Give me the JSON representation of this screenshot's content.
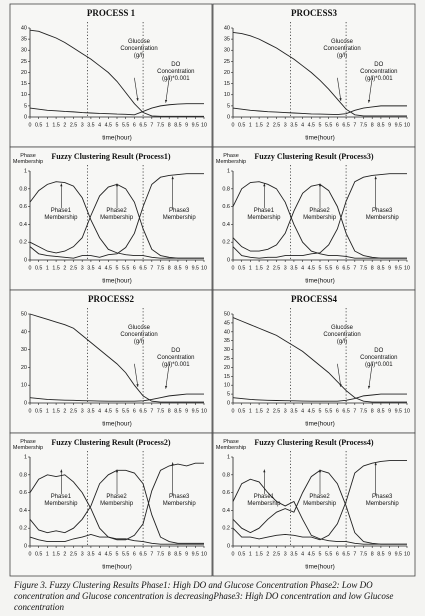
{
  "chart_data": [
    {
      "type": "line",
      "title": "PROCESS 1",
      "xlabel": "time(hour)",
      "x": [
        0,
        0.5,
        1,
        1.5,
        2,
        2.5,
        3,
        3.5,
        4,
        4.5,
        5,
        5.5,
        6,
        6.5,
        7,
        7.5,
        8,
        8.5,
        9,
        9.5,
        10
      ],
      "xlim": [
        0,
        10
      ],
      "xticks": [
        0,
        0.5,
        1,
        1.5,
        2,
        2.5,
        3,
        3.5,
        4,
        4.5,
        5,
        5.5,
        6,
        6.5,
        7,
        7.5,
        8,
        8.5,
        9,
        9.5,
        10
      ],
      "ylim": [
        0,
        40
      ],
      "yticks": [
        0,
        5,
        10,
        15,
        20,
        25,
        30,
        35,
        40
      ],
      "phase_boundaries": [
        3.3,
        6.5
      ],
      "series": [
        {
          "name": "Glucose Concentration (g/l)",
          "color": "#222",
          "values": [
            39,
            38.5,
            37,
            35.5,
            33.5,
            31,
            28.5,
            26,
            23,
            20,
            16,
            11,
            6,
            2,
            0.5,
            0.3,
            0.3,
            0.3,
            0.3,
            0.3,
            0.3
          ]
        },
        {
          "name": "DO Concentration (g/l)*0.001",
          "color": "#222",
          "values": [
            4,
            3.5,
            3,
            2.8,
            2.5,
            2.3,
            2,
            1.8,
            1.6,
            1.5,
            1.3,
            1.2,
            1,
            2.5,
            4,
            5,
            5.5,
            5.8,
            6,
            6,
            6
          ]
        }
      ]
    },
    {
      "type": "line",
      "title": "PROCESS3",
      "xlabel": "time(hour)",
      "x": [
        0,
        0.5,
        1,
        1.5,
        2,
        2.5,
        3,
        3.5,
        4,
        4.5,
        5,
        5.5,
        6,
        6.5,
        7,
        7.5,
        8,
        8.5,
        9,
        9.5,
        10
      ],
      "xlim": [
        0,
        10
      ],
      "xticks": [
        0,
        0.5,
        1,
        1.5,
        2,
        2.5,
        3,
        3.5,
        4,
        4.5,
        5,
        5.5,
        6,
        6.5,
        7,
        7.5,
        8,
        8.5,
        9,
        9.5,
        10
      ],
      "ylim": [
        0,
        40
      ],
      "yticks": [
        0,
        5,
        10,
        15,
        20,
        25,
        30,
        35,
        40
      ],
      "phase_boundaries": [
        3.3,
        6.5
      ],
      "series": [
        {
          "name": "Glucose Concentration (g/l)",
          "color": "#222",
          "values": [
            38,
            37.5,
            36.5,
            35,
            33,
            31,
            28.5,
            26,
            23,
            20,
            16.5,
            12.5,
            8,
            3.5,
            1,
            0.5,
            0.5,
            0.5,
            0.5,
            0.5,
            0.5
          ]
        },
        {
          "name": "DO Concentration (g/l)*0.001",
          "color": "#222",
          "values": [
            4,
            3.5,
            3,
            2.7,
            2.4,
            2.2,
            2,
            1.8,
            1.6,
            1.4,
            1.3,
            1.2,
            1.1,
            1.5,
            3,
            4,
            4.5,
            5,
            5,
            5,
            5
          ]
        }
      ]
    },
    {
      "type": "membership",
      "title": "Fuzzy Clustering Result (Process1)",
      "xlabel": "time(hour)",
      "ylabel": "Phase Membership",
      "x": [
        0,
        0.5,
        1,
        1.5,
        2,
        2.5,
        3,
        3.5,
        4,
        4.5,
        5,
        5.5,
        6,
        6.5,
        7,
        7.5,
        8,
        8.5,
        9,
        9.5,
        10
      ],
      "xlim": [
        0,
        10
      ],
      "xticks": [
        0,
        0.5,
        1,
        1.5,
        2,
        2.5,
        3,
        3.5,
        4,
        4.5,
        5,
        5.5,
        6,
        6.5,
        7,
        7.5,
        8,
        8.5,
        9,
        9.5,
        10
      ],
      "ylim": [
        0,
        1
      ],
      "yticks": [
        0,
        0.2,
        0.4,
        0.6,
        0.8,
        1
      ],
      "phase_boundaries": [
        3.3,
        6.5
      ],
      "series": [
        {
          "name": "Phase1 Membership",
          "color": "#222",
          "values": [
            0.65,
            0.78,
            0.85,
            0.88,
            0.87,
            0.83,
            0.7,
            0.45,
            0.25,
            0.12,
            0.08,
            0.06,
            0.05,
            0.05,
            0.03,
            0.02,
            0.02,
            0.02,
            0.02,
            0.02,
            0.02
          ]
        },
        {
          "name": "Phase2 Membership",
          "color": "#222",
          "values": [
            0.2,
            0.15,
            0.1,
            0.08,
            0.1,
            0.15,
            0.25,
            0.5,
            0.72,
            0.82,
            0.85,
            0.8,
            0.65,
            0.35,
            0.12,
            0.05,
            0.03,
            0.02,
            0.02,
            0.02,
            0.02
          ]
        },
        {
          "name": "Phase3 Membership",
          "color": "#222",
          "values": [
            0.15,
            0.07,
            0.05,
            0.04,
            0.03,
            0.02,
            0.05,
            0.05,
            0.03,
            0.06,
            0.07,
            0.14,
            0.3,
            0.6,
            0.85,
            0.93,
            0.95,
            0.96,
            0.97,
            0.97,
            0.97
          ]
        }
      ]
    },
    {
      "type": "membership",
      "title": "Fuzzy Clustering Result (Process3)",
      "xlabel": "time(hour)",
      "ylabel": "Phase Membership",
      "x": [
        0,
        0.5,
        1,
        1.5,
        2,
        2.5,
        3,
        3.5,
        4,
        4.5,
        5,
        5.5,
        6,
        6.5,
        7,
        7.5,
        8,
        8.5,
        9,
        9.5,
        10
      ],
      "xlim": [
        0,
        10
      ],
      "xticks": [
        0,
        0.5,
        1,
        1.5,
        2,
        2.5,
        3,
        3.5,
        4,
        4.5,
        5,
        5.5,
        6,
        6.5,
        7,
        7.5,
        8,
        8.5,
        9,
        9.5,
        10
      ],
      "ylim": [
        0,
        1
      ],
      "yticks": [
        0,
        0.2,
        0.4,
        0.6,
        0.8,
        1
      ],
      "phase_boundaries": [
        3.3,
        6.5
      ],
      "series": [
        {
          "name": "Phase1 Membership",
          "color": "#222",
          "values": [
            0.6,
            0.8,
            0.87,
            0.88,
            0.85,
            0.8,
            0.65,
            0.4,
            0.2,
            0.1,
            0.07,
            0.05,
            0.05,
            0.04,
            0.02,
            0.02,
            0.02,
            0.02,
            0.02,
            0.02,
            0.02
          ]
        },
        {
          "name": "Phase2 Membership",
          "color": "#222",
          "values": [
            0.25,
            0.15,
            0.1,
            0.1,
            0.12,
            0.17,
            0.3,
            0.55,
            0.75,
            0.83,
            0.85,
            0.78,
            0.6,
            0.3,
            0.1,
            0.05,
            0.03,
            0.02,
            0.02,
            0.02,
            0.02
          ]
        },
        {
          "name": "Phase3 Membership",
          "color": "#222",
          "values": [
            0.15,
            0.05,
            0.03,
            0.02,
            0.03,
            0.03,
            0.05,
            0.05,
            0.05,
            0.07,
            0.08,
            0.17,
            0.35,
            0.66,
            0.88,
            0.93,
            0.95,
            0.96,
            0.97,
            0.97,
            0.97
          ]
        }
      ]
    },
    {
      "type": "line",
      "title": "PROCESS2",
      "xlabel": "time(hour)",
      "x": [
        0,
        0.5,
        1,
        1.5,
        2,
        2.5,
        3,
        3.5,
        4,
        4.5,
        5,
        5.5,
        6,
        6.5,
        7,
        7.5,
        8,
        8.5,
        9,
        9.5,
        10
      ],
      "xlim": [
        0,
        10
      ],
      "xticks": [
        0,
        0.5,
        1,
        1.5,
        2,
        2.5,
        3,
        3.5,
        4,
        4.5,
        5,
        5.5,
        6,
        6.5,
        7,
        7.5,
        8,
        8.5,
        9,
        9.5,
        10
      ],
      "ylim": [
        0,
        50
      ],
      "yticks": [
        0,
        10,
        20,
        30,
        40,
        50
      ],
      "phase_boundaries": [
        3.3,
        6.5
      ],
      "series": [
        {
          "name": "Glucose Concentration (g/l)",
          "color": "#222",
          "values": [
            50,
            48.5,
            47,
            45.5,
            44,
            42,
            38,
            34,
            30,
            26,
            22,
            17,
            10,
            4,
            1,
            0.5,
            0.5,
            0.5,
            0.5,
            0.5,
            0.5
          ]
        },
        {
          "name": "DO Concentration (g/l)*0.001",
          "color": "#222",
          "values": [
            3,
            2.5,
            2,
            1.8,
            1.6,
            1.5,
            1.3,
            1.2,
            1.1,
            1,
            1,
            1,
            1,
            1.2,
            2,
            3,
            4,
            4.5,
            5,
            5,
            5
          ]
        }
      ]
    },
    {
      "type": "line",
      "title": "PROCESS4",
      "xlabel": "time(hour)",
      "x": [
        0,
        0.5,
        1,
        1.5,
        2,
        2.5,
        3,
        3.5,
        4,
        4.5,
        5,
        5.5,
        6,
        6.5,
        7,
        7.5,
        8,
        8.5,
        9,
        9.5,
        10
      ],
      "xlim": [
        0,
        10
      ],
      "xticks": [
        0,
        0.5,
        1,
        1.5,
        2,
        2.5,
        3,
        3.5,
        4,
        4.5,
        5,
        5.5,
        6,
        6.5,
        7,
        7.5,
        8,
        8.5,
        9,
        9.5,
        10
      ],
      "ylim": [
        0,
        50
      ],
      "yticks": [
        0,
        5,
        10,
        15,
        20,
        25,
        30,
        35,
        40,
        45,
        50
      ],
      "phase_boundaries": [
        3.3,
        6.5
      ],
      "series": [
        {
          "name": "Glucose Concentration (g/l)",
          "color": "#222",
          "values": [
            48,
            46,
            44,
            42,
            40,
            38,
            35,
            32,
            29,
            25,
            21,
            17,
            12,
            7,
            3,
            1,
            0.5,
            0.5,
            0.5,
            0.5,
            0.5
          ]
        },
        {
          "name": "DO Concentration (g/l)*0.001",
          "color": "#222",
          "values": [
            3,
            2.5,
            2,
            1.7,
            1.5,
            1.4,
            1.3,
            1.2,
            1.1,
            1,
            1,
            1,
            1,
            1.5,
            2.5,
            4,
            4.5,
            5,
            5,
            5,
            5
          ]
        }
      ]
    },
    {
      "type": "membership",
      "title": "Fuzzy Clustering Result (Process2)",
      "xlabel": "time(hour)",
      "ylabel": "Phase Membership",
      "x": [
        0,
        0.5,
        1,
        1.5,
        2,
        2.5,
        3,
        3.5,
        4,
        4.5,
        5,
        5.5,
        6,
        6.5,
        7,
        7.5,
        8,
        8.5,
        9,
        9.5,
        10
      ],
      "xlim": [
        0,
        10
      ],
      "xticks": [
        0,
        0.5,
        1,
        1.5,
        2,
        2.5,
        3,
        3.5,
        4,
        4.5,
        5,
        5.5,
        6,
        6.5,
        7,
        7.5,
        8,
        8.5,
        9,
        9.5,
        10
      ],
      "ylim": [
        0,
        1
      ],
      "yticks": [
        0,
        0.2,
        0.4,
        0.6,
        0.8,
        1
      ],
      "phase_boundaries": [
        3.3,
        6.5
      ],
      "series": [
        {
          "name": "Phase1 Membership",
          "color": "#222",
          "values": [
            0.6,
            0.75,
            0.8,
            0.78,
            0.8,
            0.72,
            0.6,
            0.42,
            0.2,
            0.1,
            0.08,
            0.08,
            0.06,
            0.05,
            0.03,
            0.02,
            0.02,
            0.02,
            0.02,
            0.02,
            0.02
          ]
        },
        {
          "name": "Phase2 Membership",
          "color": "#222",
          "values": [
            0.3,
            0.18,
            0.15,
            0.17,
            0.15,
            0.2,
            0.3,
            0.45,
            0.7,
            0.8,
            0.85,
            0.85,
            0.82,
            0.7,
            0.35,
            0.1,
            0.05,
            0.03,
            0.03,
            0.03,
            0.03
          ]
        },
        {
          "name": "Phase3 Membership",
          "color": "#222",
          "values": [
            0.1,
            0.07,
            0.05,
            0.05,
            0.05,
            0.08,
            0.1,
            0.13,
            0.1,
            0.1,
            0.07,
            0.07,
            0.12,
            0.25,
            0.62,
            0.85,
            0.9,
            0.92,
            0.9,
            0.93,
            0.93
          ]
        }
      ]
    },
    {
      "type": "membership",
      "title": "Fuzzy Clustering Result (Process4)",
      "xlabel": "time(hour)",
      "ylabel": "Phase Membership",
      "x": [
        0,
        0.5,
        1,
        1.5,
        2,
        2.5,
        3,
        3.5,
        4,
        4.5,
        5,
        5.5,
        6,
        6.5,
        7,
        7.5,
        8,
        8.5,
        9,
        9.5,
        10
      ],
      "xlim": [
        0,
        10
      ],
      "xticks": [
        0,
        0.5,
        1,
        1.5,
        2,
        2.5,
        3,
        3.5,
        4,
        4.5,
        5,
        5.5,
        6,
        6.5,
        7,
        7.5,
        8,
        8.5,
        9,
        9.5,
        10
      ],
      "ylim": [
        0,
        1
      ],
      "yticks": [
        0,
        0.2,
        0.4,
        0.6,
        0.8,
        1
      ],
      "phase_boundaries": [
        3.3,
        6.5
      ],
      "series": [
        {
          "name": "Phase1 Membership",
          "color": "#222",
          "values": [
            0.5,
            0.7,
            0.75,
            0.72,
            0.6,
            0.5,
            0.45,
            0.5,
            0.3,
            0.12,
            0.08,
            0.06,
            0.05,
            0.05,
            0.03,
            0.02,
            0.02,
            0.02,
            0.02,
            0.02,
            0.02
          ]
        },
        {
          "name": "Phase2 Membership",
          "color": "#222",
          "values": [
            0.3,
            0.2,
            0.15,
            0.2,
            0.3,
            0.38,
            0.42,
            0.38,
            0.6,
            0.78,
            0.85,
            0.82,
            0.7,
            0.45,
            0.15,
            0.05,
            0.03,
            0.02,
            0.02,
            0.02,
            0.02
          ]
        },
        {
          "name": "Phase3 Membership",
          "color": "#222",
          "values": [
            0.2,
            0.1,
            0.1,
            0.08,
            0.1,
            0.12,
            0.13,
            0.12,
            0.1,
            0.1,
            0.07,
            0.12,
            0.25,
            0.5,
            0.82,
            0.9,
            0.93,
            0.95,
            0.96,
            0.96,
            0.96
          ]
        }
      ]
    }
  ],
  "caption": "Figure 3. Fuzzy Clustering Results Phase1: High DO and Glucose Concentration Phase2: Low DO concentration and Glucose concentration is decreasingPhase3: High DO concentration and low Glucose concentration"
}
